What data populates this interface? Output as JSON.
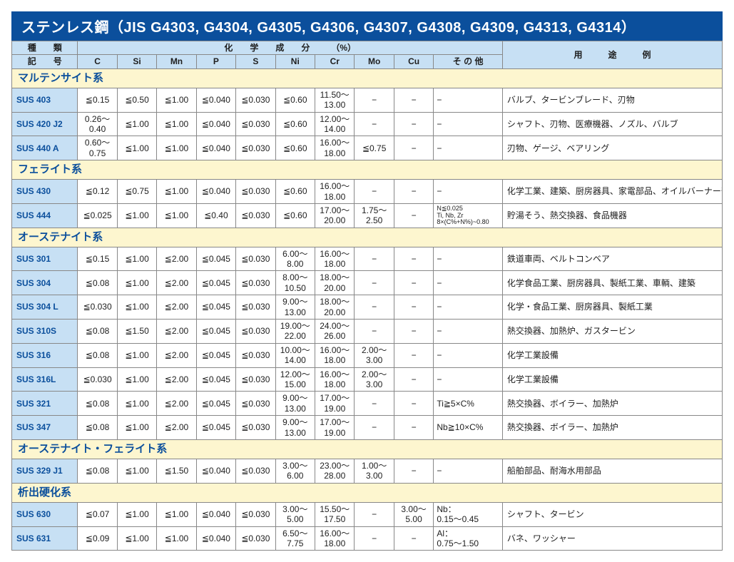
{
  "title": "ステンレス鋼（JIS G4303, G4304, G4305, G4306, G4307, G4308, G4309, G4313, G4314）",
  "headers": {
    "kind": "種　　類",
    "code": "記　　号",
    "chem": "化　　学　　成　　分　　　（%）",
    "usage": "用　　　途　　　例",
    "cols": [
      "C",
      "Si",
      "Mn",
      "P",
      "S",
      "Ni",
      "Cr",
      "Mo",
      "Cu",
      "そ の 他"
    ]
  },
  "sections": [
    {
      "name": "マルテンサイト系",
      "rows": [
        {
          "grade": "SUS 403",
          "C": "≦0.15",
          "Si": "≦0.50",
          "Mn": "≦1.00",
          "P": "≦0.040",
          "S": "≦0.030",
          "Ni": "≦0.60",
          "Cr": "11.50〜\n13.00",
          "Mo": "−",
          "Cu": "−",
          "Other": "−",
          "usage": "バルブ、タービンブレード、刃物"
        },
        {
          "grade": "SUS 420 J2",
          "C": "0.26〜\n0.40",
          "Si": "≦1.00",
          "Mn": "≦1.00",
          "P": "≦0.040",
          "S": "≦0.030",
          "Ni": "≦0.60",
          "Cr": "12.00〜\n14.00",
          "Mo": "−",
          "Cu": "−",
          "Other": "−",
          "usage": "シャフト、刃物、医療機器、ノズル、バルブ"
        },
        {
          "grade": "SUS 440 A",
          "C": "0.60〜\n0.75",
          "Si": "≦1.00",
          "Mn": "≦1.00",
          "P": "≦0.040",
          "S": "≦0.030",
          "Ni": "≦0.60",
          "Cr": "16.00〜\n18.00",
          "Mo": "≦0.75",
          "Cu": "−",
          "Other": "−",
          "usage": "刃物、ゲージ、ベアリング"
        }
      ]
    },
    {
      "name": "フェライト系",
      "rows": [
        {
          "grade": "SUS 430",
          "C": "≦0.12",
          "Si": "≦0.75",
          "Mn": "≦1.00",
          "P": "≦0.040",
          "S": "≦0.030",
          "Ni": "≦0.60",
          "Cr": "16.00〜\n18.00",
          "Mo": "−",
          "Cu": "−",
          "Other": "−",
          "usage": "化学工業、建築、厨房器具、家電部品、オイルバーナー部品"
        },
        {
          "grade": "SUS 444",
          "C": "≦0.025",
          "Si": "≦1.00",
          "Mn": "≦1.00",
          "P": "≦0.40",
          "S": "≦0.030",
          "Ni": "≦0.60",
          "Cr": "17.00〜\n20.00",
          "Mo": "1.75〜\n2.50",
          "Cu": "−",
          "Other": "N≦0.025\nTi, Nb, Zr\n8×(C%+N%)~0.80",
          "other_small": true,
          "usage": "貯湯そう、熱交換器、食品機器"
        }
      ]
    },
    {
      "name": "オーステナイト系",
      "rows": [
        {
          "grade": "SUS 301",
          "C": "≦0.15",
          "Si": "≦1.00",
          "Mn": "≦2.00",
          "P": "≦0.045",
          "S": "≦0.030",
          "Ni": "6.00〜\n8.00",
          "Cr": "16.00〜\n18.00",
          "Mo": "−",
          "Cu": "−",
          "Other": "−",
          "usage": "鉄道車両、ベルトコンベア"
        },
        {
          "grade": "SUS 304",
          "C": "≦0.08",
          "Si": "≦1.00",
          "Mn": "≦2.00",
          "P": "≦0.045",
          "S": "≦0.030",
          "Ni": "8.00〜\n10.50",
          "Cr": "18.00〜\n20.00",
          "Mo": "−",
          "Cu": "−",
          "Other": "−",
          "usage": "化学食品工業、厨房器具、製紙工業、車輌、建築"
        },
        {
          "grade": "SUS 304 L",
          "C": "≦0.030",
          "Si": "≦1.00",
          "Mn": "≦2.00",
          "P": "≦0.045",
          "S": "≦0.030",
          "Ni": "9.00〜\n13.00",
          "Cr": "18.00〜\n20.00",
          "Mo": "−",
          "Cu": "−",
          "Other": "−",
          "usage": "化学・食品工業、厨房器具、製紙工業"
        },
        {
          "grade": "SUS 310S",
          "C": "≦0.08",
          "Si": "≦1.50",
          "Mn": "≦2.00",
          "P": "≦0.045",
          "S": "≦0.030",
          "Ni": "19.00〜\n22.00",
          "Cr": "24.00〜\n26.00",
          "Mo": "−",
          "Cu": "−",
          "Other": "−",
          "usage": "熱交換器、加熱炉、ガスタービン"
        },
        {
          "grade": "SUS 316",
          "C": "≦0.08",
          "Si": "≦1.00",
          "Mn": "≦2.00",
          "P": "≦0.045",
          "S": "≦0.030",
          "Ni": "10.00〜\n14.00",
          "Cr": "16.00〜\n18.00",
          "Mo": "2.00〜\n3.00",
          "Cu": "−",
          "Other": "−",
          "usage": "化学工業設備"
        },
        {
          "grade": "SUS 316L",
          "C": "≦0.030",
          "Si": "≦1.00",
          "Mn": "≦2.00",
          "P": "≦0.045",
          "S": "≦0.030",
          "Ni": "12.00〜\n15.00",
          "Cr": "16.00〜\n18.00",
          "Mo": "2.00〜\n3.00",
          "Cu": "−",
          "Other": "−",
          "usage": "化学工業設備"
        },
        {
          "grade": "SUS 321",
          "C": "≦0.08",
          "Si": "≦1.00",
          "Mn": "≦2.00",
          "P": "≦0.045",
          "S": "≦0.030",
          "Ni": "9.00〜\n13.00",
          "Cr": "17.00〜\n19.00",
          "Mo": "−",
          "Cu": "−",
          "Other": "Ti≧5×C%",
          "usage": "熱交換器、ボイラー、加熱炉"
        },
        {
          "grade": "SUS 347",
          "C": "≦0.08",
          "Si": "≦1.00",
          "Mn": "≦2.00",
          "P": "≦0.045",
          "S": "≦0.030",
          "Ni": "9.00〜\n13.00",
          "Cr": "17.00〜\n19.00",
          "Mo": "−",
          "Cu": "−",
          "Other": "Nb≧10×C%",
          "usage": "熱交換器、ボイラー、加熱炉"
        }
      ]
    },
    {
      "name": "オーステナイト・フェライト系",
      "rows": [
        {
          "grade": "SUS 329 J1",
          "C": "≦0.08",
          "Si": "≦1.00",
          "Mn": "≦1.50",
          "P": "≦0.040",
          "S": "≦0.030",
          "Ni": "3.00〜\n6.00",
          "Cr": "23.00〜\n28.00",
          "Mo": "1.00〜\n3.00",
          "Cu": "−",
          "Other": "−",
          "usage": "船舶部品、耐海水用部品"
        }
      ]
    },
    {
      "name": "析出硬化系",
      "rows": [
        {
          "grade": "SUS 630",
          "C": "≦0.07",
          "Si": "≦1.00",
          "Mn": "≦1.00",
          "P": "≦0.040",
          "S": "≦0.030",
          "Ni": "3.00〜\n5.00",
          "Cr": "15.50〜\n17.50",
          "Mo": "−",
          "Cu": "3.00〜\n5.00",
          "Other": "Nb：\n0.15〜0.45",
          "usage": "シャフト、タービン"
        },
        {
          "grade": "SUS 631",
          "C": "≦0.09",
          "Si": "≦1.00",
          "Mn": "≦1.00",
          "P": "≦0.040",
          "S": "≦0.030",
          "Ni": "6.50〜\n7.75",
          "Cr": "16.00〜\n18.00",
          "Mo": "−",
          "Cu": "−",
          "Other": "Al：\n0.75〜1.50",
          "usage": "バネ、ワッシャー"
        }
      ]
    }
  ]
}
